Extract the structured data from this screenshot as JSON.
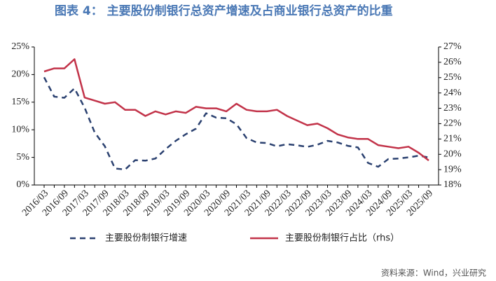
{
  "chart_data": {
    "type": "line",
    "title": "图表 4：  主要股份制银行总资产增速及占商业银行总资产的比重",
    "categories": [
      "2016/03",
      null,
      "2016/09",
      null,
      "2017/03",
      null,
      "2017/09",
      null,
      "2018/03",
      null,
      "2018/09",
      null,
      "2019/03",
      null,
      "2019/09",
      null,
      "2020/03",
      null,
      "2020/09",
      null,
      "2021/03",
      null,
      "2021/09",
      null,
      "2022/03",
      null,
      "2022/09",
      null,
      "2023/03",
      null,
      "2023/09",
      null,
      "2024/03",
      null,
      "2024/09",
      null,
      "2025/03",
      null,
      "2025/09"
    ],
    "series": [
      {
        "name": "主要股份制银行增速",
        "color": "#2b4170",
        "line_style": "dashed",
        "values": [
          19.5,
          16,
          15.8,
          17.5,
          14,
          9.5,
          7,
          3,
          2.8,
          4.5,
          4.4,
          4.8,
          6.5,
          8,
          9.2,
          10.2,
          13,
          12.2,
          12.1,
          11,
          8.5,
          7.7,
          7.6,
          7,
          7.4,
          7.2,
          6.9,
          7.3,
          8,
          7.7,
          7.1,
          6.8,
          4,
          3.3,
          4.7,
          4.8,
          5,
          5.3,
          5
        ]
      },
      {
        "name": "主要股份制银行占比（rhs）",
        "color": "#c23349",
        "line_style": "solid",
        "axis": "y2",
        "values": [
          25.4,
          25.6,
          25.6,
          26.2,
          23.7,
          23.5,
          23.3,
          23.4,
          22.9,
          22.9,
          22.5,
          22.8,
          22.6,
          22.8,
          22.7,
          23.1,
          23.0,
          23.0,
          22.8,
          23.3,
          22.9,
          22.8,
          22.8,
          22.9,
          22.5,
          22.2,
          21.9,
          22.0,
          21.7,
          21.3,
          21.1,
          21.0,
          21.0,
          20.6,
          20.5,
          20.4,
          20.5,
          20.1,
          19.6
        ]
      }
    ],
    "ylim": [
      0,
      25
    ],
    "yticks": [
      {
        "value": 0,
        "label": "0%"
      },
      {
        "value": 5,
        "label": "5%"
      },
      {
        "value": 10,
        "label": "10%"
      },
      {
        "value": 15,
        "label": "15%"
      },
      {
        "value": 20,
        "label": "20%"
      },
      {
        "value": 25,
        "label": "25%"
      }
    ],
    "y2lim": [
      18,
      27
    ],
    "y2ticks": [
      {
        "value": 18,
        "label": "18%"
      },
      {
        "value": 19,
        "label": "19%"
      },
      {
        "value": 20,
        "label": "20%"
      },
      {
        "value": 21,
        "label": "21%"
      },
      {
        "value": 22,
        "label": "22%"
      },
      {
        "value": 23,
        "label": "23%"
      },
      {
        "value": 24,
        "label": "24%"
      },
      {
        "value": 25,
        "label": "25%"
      },
      {
        "value": 26,
        "label": "26%"
      },
      {
        "value": 27,
        "label": "27%"
      }
    ],
    "source": "资料来源：Wind，兴业研究"
  }
}
